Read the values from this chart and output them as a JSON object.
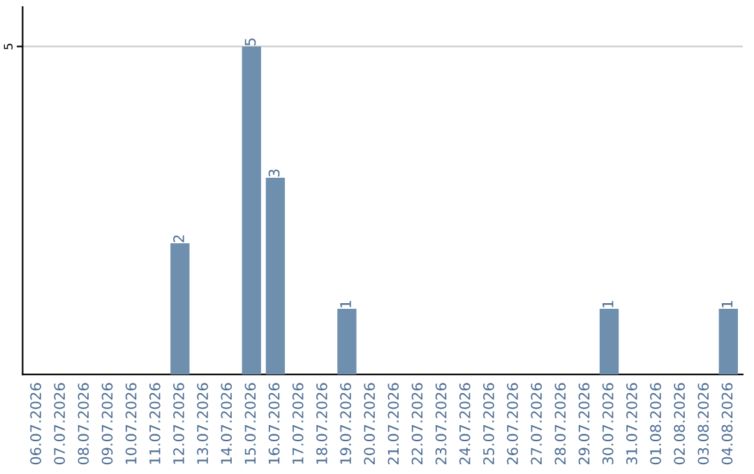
{
  "chart_data": {
    "type": "bar",
    "categories": [
      "06.07.2026",
      "07.07.2026",
      "08.07.2026",
      "09.07.2026",
      "10.07.2026",
      "11.07.2026",
      "12.07.2026",
      "13.07.2026",
      "14.07.2026",
      "15.07.2026",
      "16.07.2026",
      "17.07.2026",
      "18.07.2026",
      "19.07.2026",
      "20.07.2026",
      "21.07.2026",
      "22.07.2026",
      "23.07.2026",
      "24.07.2026",
      "25.07.2026",
      "26.07.2026",
      "27.07.2026",
      "28.07.2026",
      "29.07.2026",
      "30.07.2026",
      "31.07.2026",
      "01.08.2026",
      "02.08.2026",
      "03.08.2026",
      "04.08.2026"
    ],
    "values": [
      0,
      0,
      0,
      0,
      0,
      0,
      2,
      0,
      0,
      5,
      3,
      0,
      0,
      1,
      0,
      0,
      0,
      0,
      0,
      0,
      0,
      0,
      0,
      0,
      1,
      0,
      0,
      0,
      0,
      1
    ],
    "value_labels": [
      null,
      null,
      null,
      null,
      null,
      null,
      "2",
      null,
      null,
      "5",
      "3",
      null,
      null,
      "1",
      null,
      null,
      null,
      null,
      null,
      null,
      null,
      null,
      null,
      null,
      "1",
      null,
      null,
      null,
      null,
      "1"
    ],
    "color": "#6e8fae",
    "ylim": [
      0,
      5.6
    ],
    "yticks": [
      5
    ],
    "grid": "y"
  }
}
